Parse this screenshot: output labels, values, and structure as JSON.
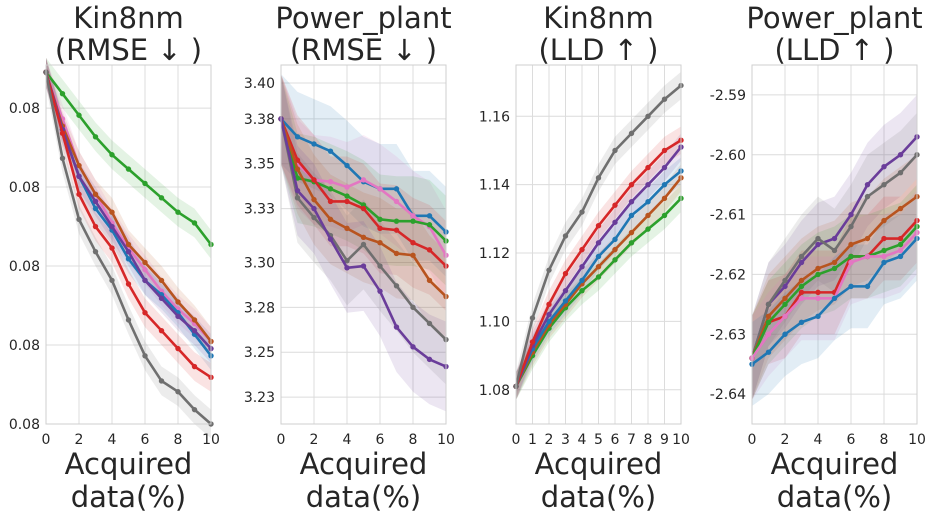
{
  "chart_data": [
    {
      "type": "line",
      "title_line1": "Kin8nm",
      "title_line2": "(RMSE ↓ )",
      "xlabel_line1": "Acquired",
      "xlabel_line2": "data(%)",
      "xlim": [
        0,
        10
      ],
      "ylim": [
        0,
        100
      ],
      "xticks": [
        "0",
        "2",
        "4",
        "6",
        "8",
        "10"
      ],
      "yticks": [
        {
          "v": 88,
          "label": "0.08"
        },
        {
          "v": 66,
          "label": "0.08"
        },
        {
          "v": 44,
          "label": "0.08"
        },
        {
          "v": 22,
          "label": "0.08"
        },
        {
          "v": 0,
          "label": "0.08"
        }
      ],
      "x": [
        0,
        1,
        2,
        3,
        4,
        5,
        6,
        7,
        8,
        9,
        10
      ],
      "band": 4,
      "series": [
        {
          "name": "green",
          "color": "#2ca02c",
          "values": [
            98,
            92,
            86,
            80,
            75,
            71,
            67,
            63,
            59,
            56,
            50
          ]
        },
        {
          "name": "pink",
          "color": "#e377c2",
          "values": [
            98,
            85,
            72,
            64,
            56,
            49,
            43,
            37,
            32,
            28,
            23
          ]
        },
        {
          "name": "brown",
          "color": "#b8541f",
          "values": [
            98,
            83,
            72,
            64,
            59,
            50,
            45,
            40,
            34,
            29,
            23
          ]
        },
        {
          "name": "blue",
          "color": "#1f77b4",
          "values": [
            98,
            82,
            69,
            60,
            54,
            46,
            40,
            36,
            31,
            25,
            19
          ]
        },
        {
          "name": "purple",
          "color": "#6a3d9a",
          "values": [
            98,
            82,
            69,
            62,
            55,
            48,
            40,
            35,
            30,
            26,
            21
          ]
        },
        {
          "name": "red",
          "color": "#d62728",
          "values": [
            98,
            81,
            64,
            55,
            49,
            39,
            31,
            26,
            21,
            16,
            13
          ]
        },
        {
          "name": "gray",
          "color": "#6f6f6f",
          "values": [
            98,
            74,
            57,
            48,
            40,
            29,
            19,
            12,
            9,
            4,
            0
          ]
        }
      ]
    },
    {
      "type": "line",
      "title_line1": "Power_plant",
      "title_line2": "(RMSE ↓ )",
      "xlabel_line1": "Acquired",
      "xlabel_line2": "data(%)",
      "xlim": [
        0,
        10
      ],
      "ylim": [
        3.21,
        3.41
      ],
      "xticks": [
        "0",
        "2",
        "4",
        "6",
        "8",
        "10"
      ],
      "yticks": [
        {
          "v": 3.4,
          "label": "3.40"
        },
        {
          "v": 3.38,
          "label": "3.38"
        },
        {
          "v": 3.355,
          "label": "3.35"
        },
        {
          "v": 3.33,
          "label": "3.33"
        },
        {
          "v": 3.3,
          "label": "3.30"
        },
        {
          "v": 3.275,
          "label": "3.28"
        },
        {
          "v": 3.25,
          "label": "3.25"
        },
        {
          "v": 3.225,
          "label": "3.23"
        }
      ],
      "x": [
        0,
        1,
        2,
        3,
        4,
        5,
        6,
        7,
        8,
        9,
        10
      ],
      "band": 0.025,
      "series": [
        {
          "name": "blue",
          "color": "#1f77b4",
          "values": [
            3.38,
            3.37,
            3.366,
            3.362,
            3.354,
            3.345,
            3.341,
            3.341,
            3.326,
            3.326,
            3.317
          ]
        },
        {
          "name": "pink",
          "color": "#e377c2",
          "values": [
            3.38,
            3.355,
            3.346,
            3.345,
            3.342,
            3.346,
            3.341,
            3.334,
            3.326,
            3.32,
            3.304
          ]
        },
        {
          "name": "green",
          "color": "#2ca02c",
          "values": [
            3.38,
            3.347,
            3.345,
            3.341,
            3.337,
            3.332,
            3.324,
            3.323,
            3.323,
            3.321,
            3.312
          ]
        },
        {
          "name": "red",
          "color": "#d62728",
          "values": [
            3.38,
            3.357,
            3.346,
            3.334,
            3.334,
            3.33,
            3.319,
            3.318,
            3.311,
            3.307,
            3.298
          ]
        },
        {
          "name": "brown",
          "color": "#b8541f",
          "values": [
            3.38,
            3.352,
            3.335,
            3.324,
            3.319,
            3.314,
            3.311,
            3.305,
            3.304,
            3.29,
            3.281
          ]
        },
        {
          "name": "gray",
          "color": "#6f6f6f",
          "values": [
            3.38,
            3.336,
            3.325,
            3.315,
            3.301,
            3.31,
            3.298,
            3.287,
            3.275,
            3.266,
            3.257
          ]
        },
        {
          "name": "purple",
          "color": "#6a3d9a",
          "values": [
            3.38,
            3.34,
            3.33,
            3.313,
            3.297,
            3.298,
            3.284,
            3.264,
            3.253,
            3.246,
            3.242
          ]
        }
      ]
    },
    {
      "type": "line",
      "title_line1": "Kin8nm",
      "title_line2": "(LLD ↑ )",
      "xlabel_line1": "Acquired",
      "xlabel_line2": "data(%)",
      "xlim": [
        0,
        10
      ],
      "ylim": [
        1.07,
        1.175
      ],
      "xticks": [
        "0",
        "1",
        "2",
        "3",
        "4",
        "5",
        "6",
        "7",
        "8",
        "9",
        "10"
      ],
      "yticks": [
        {
          "v": 1.16,
          "label": "1.16"
        },
        {
          "v": 1.14,
          "label": "1.14"
        },
        {
          "v": 1.12,
          "label": "1.12"
        },
        {
          "v": 1.1,
          "label": "1.10"
        },
        {
          "v": 1.08,
          "label": "1.08"
        }
      ],
      "x": [
        0,
        1,
        2,
        3,
        4,
        5,
        6,
        7,
        8,
        9,
        10
      ],
      "band": 0.004,
      "series": [
        {
          "name": "green",
          "color": "#2ca02c",
          "values": [
            1.081,
            1.09,
            1.098,
            1.104,
            1.109,
            1.113,
            1.118,
            1.123,
            1.127,
            1.131,
            1.136
          ]
        },
        {
          "name": "brown",
          "color": "#b8541f",
          "values": [
            1.081,
            1.091,
            1.099,
            1.105,
            1.111,
            1.116,
            1.121,
            1.126,
            1.131,
            1.136,
            1.142
          ]
        },
        {
          "name": "blue",
          "color": "#1f77b4",
          "values": [
            1.081,
            1.092,
            1.1,
            1.106,
            1.112,
            1.119,
            1.124,
            1.131,
            1.135,
            1.14,
            1.144
          ]
        },
        {
          "name": "purple",
          "color": "#6a3d9a",
          "values": [
            1.081,
            1.093,
            1.102,
            1.109,
            1.116,
            1.123,
            1.129,
            1.135,
            1.14,
            1.145,
            1.151
          ]
        },
        {
          "name": "red",
          "color": "#d62728",
          "values": [
            1.081,
            1.094,
            1.105,
            1.114,
            1.121,
            1.128,
            1.134,
            1.14,
            1.145,
            1.15,
            1.153
          ]
        },
        {
          "name": "gray",
          "color": "#6f6f6f",
          "values": [
            1.081,
            1.101,
            1.115,
            1.125,
            1.132,
            1.142,
            1.15,
            1.155,
            1.16,
            1.165,
            1.169
          ]
        }
      ]
    },
    {
      "type": "line",
      "title_line1": "Power_plant",
      "title_line2": "(LLD ↑ )",
      "xlabel_line1": "Acquired",
      "xlabel_line2": "data(%)",
      "xlim": [
        0,
        10
      ],
      "ylim": [
        -2.645,
        -2.585
      ],
      "xticks": [
        "0",
        "2",
        "4",
        "6",
        "8",
        "10"
      ],
      "yticks": [
        {
          "v": -2.59,
          "label": "-2.59"
        },
        {
          "v": -2.6,
          "label": "-2.60"
        },
        {
          "v": -2.61,
          "label": "-2.61"
        },
        {
          "v": -2.62,
          "label": "-2.62"
        },
        {
          "v": -2.63,
          "label": "-2.63"
        },
        {
          "v": -2.64,
          "label": "-2.64"
        }
      ],
      "x": [
        0,
        1,
        2,
        3,
        4,
        5,
        6,
        7,
        8,
        9,
        10
      ],
      "band": 0.007,
      "series": [
        {
          "name": "purple",
          "color": "#6a3d9a",
          "values": [
            -2.634,
            -2.625,
            -2.622,
            -2.618,
            -2.615,
            -2.614,
            -2.61,
            -2.605,
            -2.602,
            -2.6,
            -2.597
          ]
        },
        {
          "name": "gray",
          "color": "#6f6f6f",
          "values": [
            -2.634,
            -2.625,
            -2.621,
            -2.617,
            -2.614,
            -2.616,
            -2.612,
            -2.607,
            -2.605,
            -2.603,
            -2.6
          ]
        },
        {
          "name": "brown",
          "color": "#b8541f",
          "values": [
            -2.634,
            -2.627,
            -2.624,
            -2.621,
            -2.619,
            -2.618,
            -2.615,
            -2.614,
            -2.611,
            -2.609,
            -2.607
          ]
        },
        {
          "name": "red",
          "color": "#d62728",
          "values": [
            -2.634,
            -2.628,
            -2.627,
            -2.623,
            -2.623,
            -2.623,
            -2.617,
            -2.617,
            -2.614,
            -2.614,
            -2.611
          ]
        },
        {
          "name": "green",
          "color": "#2ca02c",
          "values": [
            -2.634,
            -2.628,
            -2.625,
            -2.622,
            -2.62,
            -2.619,
            -2.617,
            -2.617,
            -2.616,
            -2.615,
            -2.612
          ]
        },
        {
          "name": "pink",
          "color": "#e377c2",
          "values": [
            -2.634,
            -2.63,
            -2.627,
            -2.624,
            -2.624,
            -2.624,
            -2.618,
            -2.617,
            -2.617,
            -2.616,
            -2.613
          ]
        },
        {
          "name": "blue",
          "color": "#1f77b4",
          "values": [
            -2.635,
            -2.633,
            -2.63,
            -2.628,
            -2.627,
            -2.624,
            -2.622,
            -2.622,
            -2.618,
            -2.617,
            -2.614
          ]
        }
      ]
    }
  ]
}
